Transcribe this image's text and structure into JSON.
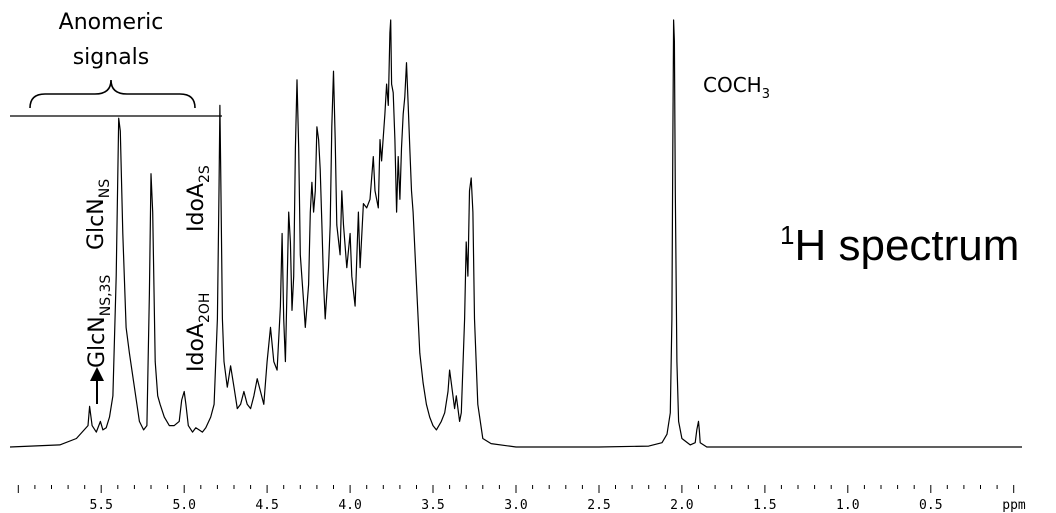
{
  "chart_data": {
    "type": "line",
    "title": "",
    "xlabel": "ppm",
    "ylabel": "",
    "xlim": [
      6.05,
      -0.05
    ],
    "x_reversed": true,
    "x_major_ticks": [
      "5.5",
      "5.0",
      "4.5",
      "4.0",
      "3.5",
      "3.0",
      "2.5",
      "2.0",
      "1.5",
      "1.0",
      "0.5"
    ],
    "x_major_values": [
      5.5,
      5.0,
      4.5,
      4.0,
      3.5,
      3.0,
      2.5,
      2.0,
      1.5,
      1.0,
      0.5
    ],
    "x_minor_step": 0.1,
    "grid": false,
    "series": [
      {
        "points": [
          [
            6.05,
            0.0
          ],
          [
            5.75,
            0.005
          ],
          [
            5.65,
            0.02
          ],
          [
            5.58,
            0.05
          ],
          [
            5.57,
            0.095
          ],
          [
            5.555,
            0.05
          ],
          [
            5.53,
            0.035
          ],
          [
            5.505,
            0.06
          ],
          [
            5.49,
            0.04
          ],
          [
            5.47,
            0.045
          ],
          [
            5.45,
            0.07
          ],
          [
            5.43,
            0.12
          ],
          [
            5.41,
            0.4
          ],
          [
            5.395,
            0.77
          ],
          [
            5.385,
            0.74
          ],
          [
            5.37,
            0.5
          ],
          [
            5.35,
            0.28
          ],
          [
            5.33,
            0.22
          ],
          [
            5.3,
            0.14
          ],
          [
            5.27,
            0.06
          ],
          [
            5.245,
            0.04
          ],
          [
            5.225,
            0.05
          ],
          [
            5.21,
            0.36
          ],
          [
            5.2,
            0.64
          ],
          [
            5.19,
            0.55
          ],
          [
            5.175,
            0.2
          ],
          [
            5.16,
            0.12
          ],
          [
            5.145,
            0.1
          ],
          [
            5.12,
            0.07
          ],
          [
            5.09,
            0.05
          ],
          [
            5.06,
            0.05
          ],
          [
            5.03,
            0.06
          ],
          [
            5.015,
            0.11
          ],
          [
            5.0,
            0.13
          ],
          [
            4.99,
            0.1
          ],
          [
            4.975,
            0.05
          ],
          [
            4.95,
            0.035
          ],
          [
            4.93,
            0.045
          ],
          [
            4.91,
            0.04
          ],
          [
            4.89,
            0.035
          ],
          [
            4.87,
            0.045
          ],
          [
            4.84,
            0.07
          ],
          [
            4.82,
            0.1
          ],
          [
            4.8,
            0.3
          ],
          [
            4.79,
            0.6
          ],
          [
            4.785,
            0.8
          ],
          [
            4.78,
            0.65
          ],
          [
            4.77,
            0.3
          ],
          [
            4.76,
            0.2
          ],
          [
            4.74,
            0.14
          ],
          [
            4.72,
            0.19
          ],
          [
            4.7,
            0.14
          ],
          [
            4.68,
            0.09
          ],
          [
            4.66,
            0.1
          ],
          [
            4.64,
            0.13
          ],
          [
            4.62,
            0.1
          ],
          [
            4.6,
            0.09
          ],
          [
            4.58,
            0.12
          ],
          [
            4.56,
            0.16
          ],
          [
            4.54,
            0.13
          ],
          [
            4.52,
            0.1
          ],
          [
            4.5,
            0.2
          ],
          [
            4.48,
            0.28
          ],
          [
            4.46,
            0.2
          ],
          [
            4.44,
            0.18
          ],
          [
            4.42,
            0.33
          ],
          [
            4.41,
            0.5
          ],
          [
            4.4,
            0.3
          ],
          [
            4.39,
            0.2
          ],
          [
            4.38,
            0.38
          ],
          [
            4.37,
            0.55
          ],
          [
            4.36,
            0.48
          ],
          [
            4.35,
            0.32
          ],
          [
            4.34,
            0.4
          ],
          [
            4.33,
            0.7
          ],
          [
            4.32,
            0.86
          ],
          [
            4.31,
            0.7
          ],
          [
            4.3,
            0.45
          ],
          [
            4.28,
            0.34
          ],
          [
            4.27,
            0.28
          ],
          [
            4.25,
            0.38
          ],
          [
            4.24,
            0.55
          ],
          [
            4.23,
            0.62
          ],
          [
            4.22,
            0.55
          ],
          [
            4.21,
            0.6
          ],
          [
            4.2,
            0.75
          ],
          [
            4.19,
            0.72
          ],
          [
            4.18,
            0.65
          ],
          [
            4.17,
            0.52
          ],
          [
            4.16,
            0.38
          ],
          [
            4.15,
            0.3
          ],
          [
            4.13,
            0.42
          ],
          [
            4.12,
            0.52
          ],
          [
            4.11,
            0.75
          ],
          [
            4.1,
            0.88
          ],
          [
            4.09,
            0.72
          ],
          [
            4.08,
            0.52
          ],
          [
            4.06,
            0.45
          ],
          [
            4.05,
            0.6
          ],
          [
            4.04,
            0.52
          ],
          [
            4.02,
            0.42
          ],
          [
            4.0,
            0.5
          ],
          [
            3.99,
            0.4
          ],
          [
            3.97,
            0.33
          ],
          [
            3.95,
            0.55
          ],
          [
            3.94,
            0.42
          ],
          [
            3.92,
            0.57
          ],
          [
            3.9,
            0.56
          ],
          [
            3.88,
            0.58
          ],
          [
            3.86,
            0.68
          ],
          [
            3.85,
            0.6
          ],
          [
            3.83,
            0.56
          ],
          [
            3.82,
            0.72
          ],
          [
            3.81,
            0.67
          ],
          [
            3.79,
            0.78
          ],
          [
            3.78,
            0.85
          ],
          [
            3.77,
            0.8
          ],
          [
            3.76,
            0.97
          ],
          [
            3.755,
            1.0
          ],
          [
            3.75,
            0.85
          ],
          [
            3.74,
            0.83
          ],
          [
            3.73,
            0.72
          ],
          [
            3.72,
            0.55
          ],
          [
            3.71,
            0.68
          ],
          [
            3.7,
            0.58
          ],
          [
            3.69,
            0.7
          ],
          [
            3.68,
            0.78
          ],
          [
            3.67,
            0.82
          ],
          [
            3.66,
            0.9
          ],
          [
            3.65,
            0.8
          ],
          [
            3.64,
            0.7
          ],
          [
            3.63,
            0.6
          ],
          [
            3.62,
            0.55
          ],
          [
            3.6,
            0.38
          ],
          [
            3.58,
            0.22
          ],
          [
            3.56,
            0.15
          ],
          [
            3.54,
            0.1
          ],
          [
            3.52,
            0.07
          ],
          [
            3.5,
            0.05
          ],
          [
            3.48,
            0.04
          ],
          [
            3.45,
            0.06
          ],
          [
            3.43,
            0.08
          ],
          [
            3.41,
            0.13
          ],
          [
            3.4,
            0.18
          ],
          [
            3.39,
            0.15
          ],
          [
            3.37,
            0.09
          ],
          [
            3.36,
            0.12
          ],
          [
            3.34,
            0.06
          ],
          [
            3.33,
            0.08
          ],
          [
            3.31,
            0.3
          ],
          [
            3.3,
            0.48
          ],
          [
            3.29,
            0.4
          ],
          [
            3.28,
            0.6
          ],
          [
            3.27,
            0.63
          ],
          [
            3.26,
            0.55
          ],
          [
            3.25,
            0.3
          ],
          [
            3.23,
            0.1
          ],
          [
            3.2,
            0.02
          ],
          [
            3.15,
            0.008
          ],
          [
            3.0,
            0.0
          ],
          [
            2.5,
            0.0
          ],
          [
            2.2,
            0.002
          ],
          [
            2.12,
            0.01
          ],
          [
            2.09,
            0.03
          ],
          [
            2.07,
            0.08
          ],
          [
            2.06,
            0.3
          ],
          [
            2.055,
            0.7
          ],
          [
            2.05,
            1.0
          ],
          [
            2.045,
            0.95
          ],
          [
            2.04,
            0.6
          ],
          [
            2.03,
            0.2
          ],
          [
            2.02,
            0.06
          ],
          [
            2.0,
            0.02
          ],
          [
            1.95,
            0.005
          ],
          [
            1.92,
            0.01
          ],
          [
            1.91,
            0.04
          ],
          [
            1.9,
            0.06
          ],
          [
            1.895,
            0.04
          ],
          [
            1.89,
            0.01
          ],
          [
            1.85,
            0.0
          ],
          [
            1.0,
            0.0
          ],
          [
            -0.05,
            0.0
          ]
        ]
      }
    ],
    "annotations": [
      {
        "key": "anomeric",
        "text": "Anomeric signals",
        "lines": [
          "Anomeric",
          "signals"
        ]
      },
      {
        "key": "glcn_ns",
        "base": "GlcN",
        "sub": "NS",
        "x": 5.39
      },
      {
        "key": "idoa_2s",
        "base": "IdoA",
        "sub": "2S",
        "x": 5.2
      },
      {
        "key": "glcn_ns3s",
        "base": "GlcN",
        "sub": "NS,3S",
        "x": 5.5
      },
      {
        "key": "idoa_2oh",
        "base": "IdoA",
        "sub": "2OH",
        "x": 5.0
      },
      {
        "key": "coch3",
        "base": "COCH",
        "sub": "3",
        "x": 2.05
      },
      {
        "key": "spectrum",
        "sup": "1",
        "base": "H spectrum"
      }
    ],
    "colors": {
      "line": "#000000",
      "background": "#ffffff"
    }
  }
}
